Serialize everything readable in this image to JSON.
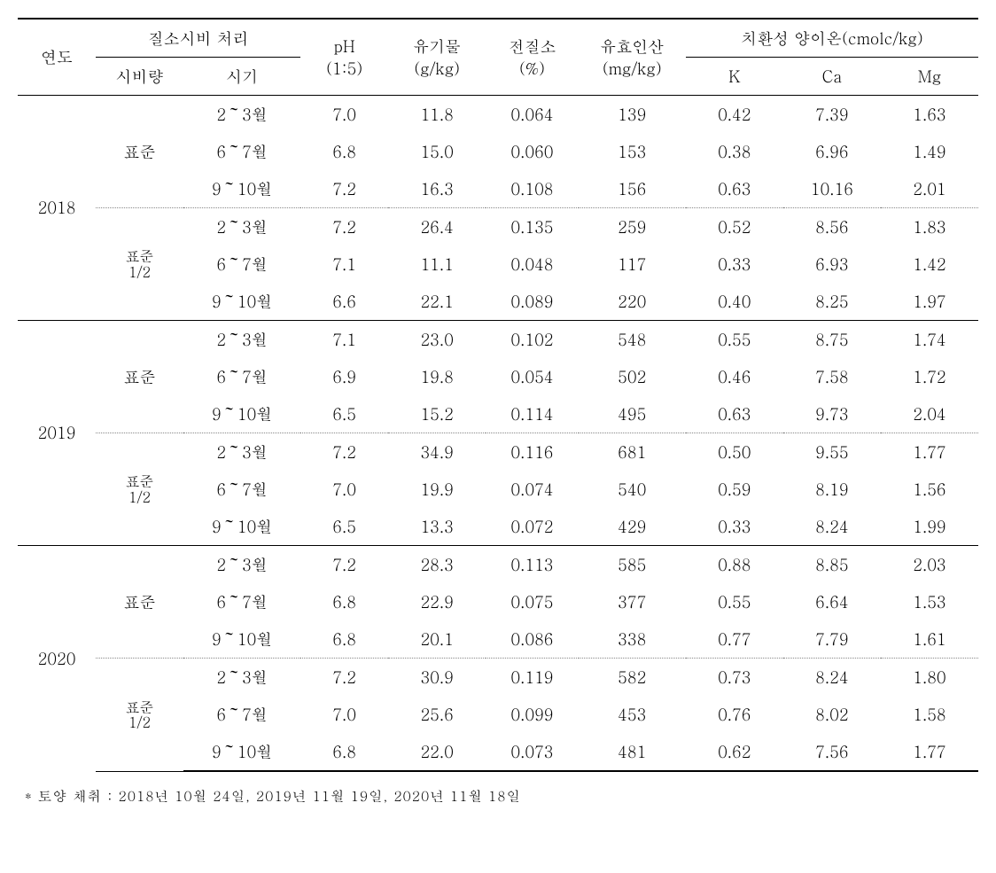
{
  "head": {
    "year": "연도",
    "treatment_group": "질소시비 처리",
    "sibi": "시비량",
    "time": "시기",
    "ph": "pH",
    "ph_sub": "(1:5)",
    "org": "유기물",
    "org_sub": "(g/kg)",
    "nit": "전질소",
    "nit_sub": "(%)",
    "phos": "유효인산",
    "phos_sub": "(mg/kg)",
    "cation_group": "치환성 양이온(cmolc/kg)",
    "k": "K",
    "ca": "Ca",
    "mg": "Mg"
  },
  "labels": {
    "std": "표준",
    "half_1": "표준",
    "half_2": "1/2"
  },
  "years": [
    "2018",
    "2019",
    "2020"
  ],
  "rows": [
    [
      "2～3월",
      "7.0",
      "11.8",
      "0.064",
      "139",
      "0.42",
      "7.39",
      "1.63"
    ],
    [
      "6～7월",
      "6.8",
      "15.0",
      "0.060",
      "153",
      "0.38",
      "6.96",
      "1.49"
    ],
    [
      "9～10월",
      "7.2",
      "16.3",
      "0.108",
      "156",
      "0.63",
      "10.16",
      "2.01"
    ],
    [
      "2～3월",
      "7.2",
      "26.4",
      "0.135",
      "259",
      "0.52",
      "8.56",
      "1.83"
    ],
    [
      "6～7월",
      "7.1",
      "11.1",
      "0.048",
      "117",
      "0.33",
      "6.93",
      "1.42"
    ],
    [
      "9～10월",
      "6.6",
      "22.1",
      "0.089",
      "220",
      "0.40",
      "8.25",
      "1.97"
    ],
    [
      "2～3월",
      "7.1",
      "23.0",
      "0.102",
      "548",
      "0.55",
      "8.75",
      "1.74"
    ],
    [
      "6～7월",
      "6.9",
      "19.8",
      "0.054",
      "502",
      "0.46",
      "7.58",
      "1.72"
    ],
    [
      "9～10월",
      "6.5",
      "15.2",
      "0.114",
      "495",
      "0.63",
      "9.73",
      "2.04"
    ],
    [
      "2～3월",
      "7.2",
      "34.9",
      "0.116",
      "681",
      "0.50",
      "9.55",
      "1.77"
    ],
    [
      "6～7월",
      "7.0",
      "19.9",
      "0.074",
      "540",
      "0.59",
      "8.19",
      "1.56"
    ],
    [
      "9～10월",
      "6.5",
      "13.3",
      "0.072",
      "429",
      "0.33",
      "8.24",
      "1.99"
    ],
    [
      "2～3월",
      "7.2",
      "28.3",
      "0.113",
      "585",
      "0.88",
      "8.85",
      "2.03"
    ],
    [
      "6～7월",
      "6.8",
      "22.9",
      "0.075",
      "377",
      "0.55",
      "6.64",
      "1.53"
    ],
    [
      "9～10월",
      "6.8",
      "20.1",
      "0.086",
      "338",
      "0.77",
      "7.79",
      "1.61"
    ],
    [
      "2～3월",
      "7.2",
      "30.9",
      "0.119",
      "582",
      "0.73",
      "8.24",
      "1.80"
    ],
    [
      "6～7월",
      "7.0",
      "25.6",
      "0.099",
      "453",
      "0.76",
      "8.02",
      "1.58"
    ],
    [
      "9～10월",
      "6.8",
      "22.0",
      "0.073",
      "481",
      "0.62",
      "7.56",
      "1.77"
    ]
  ],
  "footnote": "* 토양 채취 : 2018년 10월 24일, 2019년 11월 19일, 2020년 11월 18일"
}
